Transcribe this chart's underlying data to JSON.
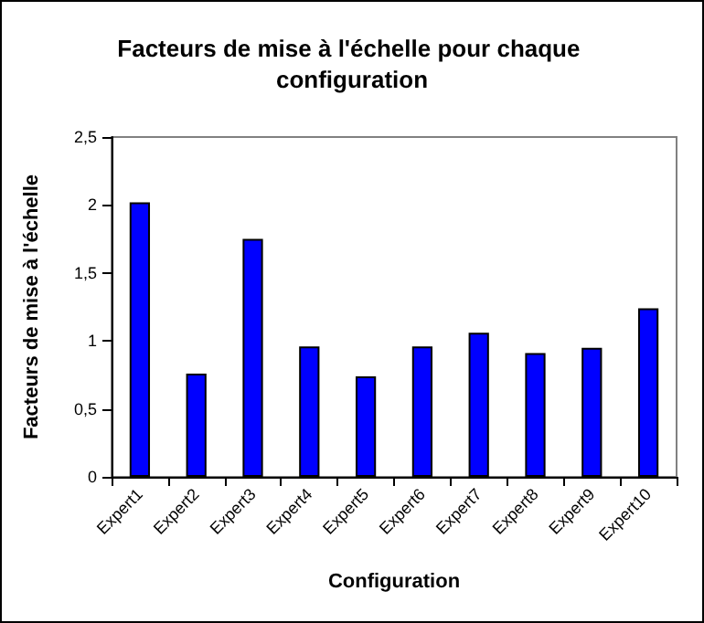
{
  "chart_data": {
    "type": "bar",
    "title": "Facteurs de mise à l'échelle pour chaque configuration",
    "xlabel": "Configuration",
    "ylabel": "Facteurs de mise à l'échelle",
    "categories": [
      "Expert1",
      "Expert2",
      "Expert3",
      "Expert4",
      "Expert5",
      "Expert6",
      "Expert7",
      "Expert8",
      "Expert9",
      "Expert10"
    ],
    "values": [
      2.02,
      0.76,
      1.75,
      0.96,
      0.74,
      0.96,
      1.06,
      0.91,
      0.95,
      1.24
    ],
    "color": "#0000ff",
    "ylim": [
      0,
      2.5
    ],
    "yticks": [
      {
        "value": 0,
        "label": "0"
      },
      {
        "value": 0.5,
        "label": "0,5"
      },
      {
        "value": 1,
        "label": "1"
      },
      {
        "value": 1.5,
        "label": "1,5"
      },
      {
        "value": 2,
        "label": "2"
      },
      {
        "value": 2.5,
        "label": "2,5"
      }
    ],
    "grid": false
  }
}
